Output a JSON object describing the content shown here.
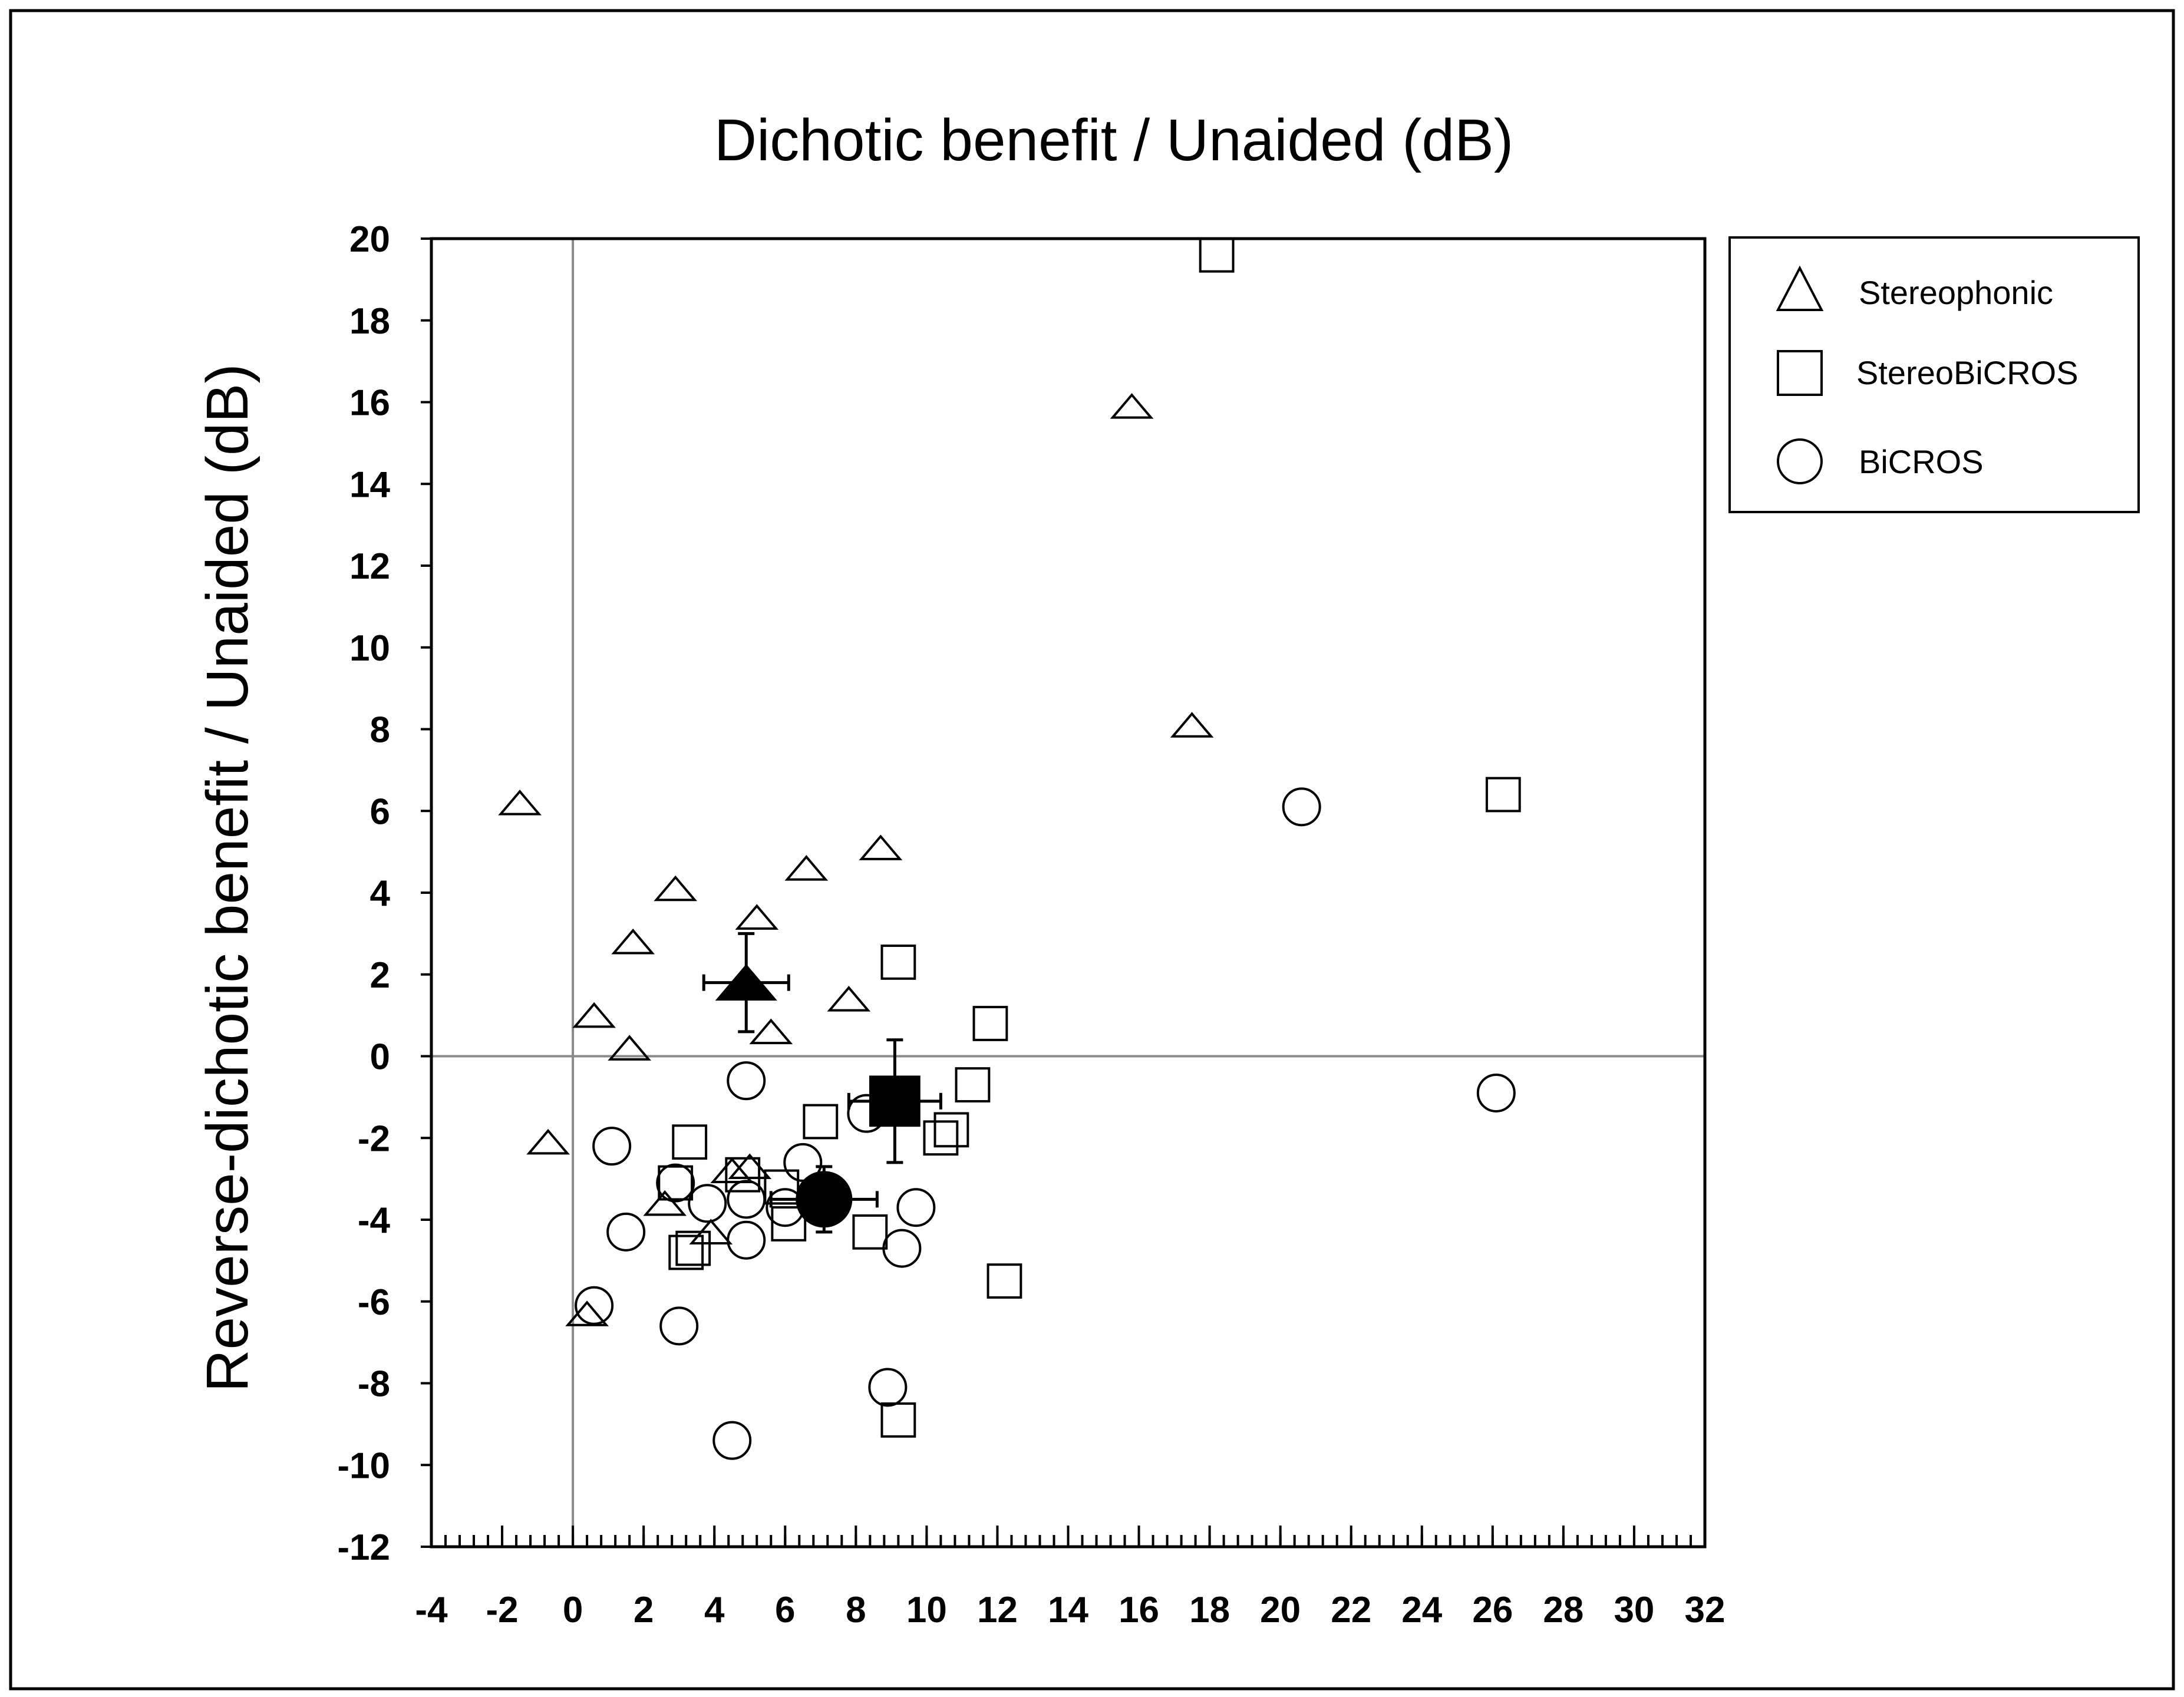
{
  "chart_data": {
    "type": "scatter",
    "title": "Dichotic benefit / Unaided (dB)",
    "xlabel": "",
    "ylabel": "Reverse-dichotic benefit / Unaided (dB)",
    "xlim": [
      -4,
      32
    ],
    "ylim": [
      -12,
      20
    ],
    "x_ticks": [
      -4,
      -2,
      0,
      2,
      4,
      6,
      8,
      10,
      12,
      14,
      16,
      18,
      20,
      22,
      24,
      26,
      28,
      30,
      32
    ],
    "x_tick_labels": [
      "-4",
      "-2",
      "0",
      "2",
      "4",
      "6",
      "8",
      "10",
      "12",
      "14",
      "16",
      "18",
      "20",
      "22",
      "24",
      "26",
      "28",
      "30",
      "32"
    ],
    "y_ticks": [
      -12,
      -10,
      -8,
      -6,
      -4,
      -2,
      0,
      2,
      4,
      6,
      8,
      10,
      12,
      14,
      16,
      18,
      20
    ],
    "y_tick_labels": [
      "-12",
      "-10",
      "-8",
      "-6",
      "-4",
      "-2",
      "0",
      "2",
      "4",
      "6",
      "8",
      "10",
      "12",
      "14",
      "16",
      "18",
      "20"
    ],
    "x_minor_step": 0.4,
    "reference_lines": {
      "x": 0,
      "y": 0
    },
    "grid": false,
    "legend_position": "top-right, outside plot",
    "series": [
      {
        "name": "Stereophonic",
        "marker": "triangle",
        "fill": "none",
        "points": [
          [
            -1.5,
            6.2
          ],
          [
            -0.7,
            -2.1
          ],
          [
            0.6,
            1.0
          ],
          [
            1.6,
            0.2
          ],
          [
            1.7,
            2.8
          ],
          [
            2.9,
            4.1
          ],
          [
            2.6,
            -3.6
          ],
          [
            3.9,
            -4.3
          ],
          [
            4.5,
            -2.8
          ],
          [
            5.0,
            -2.7
          ],
          [
            5.2,
            3.4
          ],
          [
            5.6,
            0.6
          ],
          [
            6.6,
            4.6
          ],
          [
            7.8,
            1.4
          ],
          [
            8.7,
            5.1
          ],
          [
            0.4,
            -6.3
          ],
          [
            15.8,
            15.9
          ],
          [
            17.5,
            8.1
          ]
        ]
      },
      {
        "name": "StereoBiCROS",
        "marker": "square",
        "fill": "none",
        "points": [
          [
            18.2,
            19.6
          ],
          [
            26.3,
            6.4
          ],
          [
            9.2,
            2.3
          ],
          [
            11.8,
            0.8
          ],
          [
            11.3,
            -0.7
          ],
          [
            10.7,
            -1.8
          ],
          [
            10.4,
            -2.0
          ],
          [
            7.0,
            -1.6
          ],
          [
            3.3,
            -2.1
          ],
          [
            2.9,
            -3.1
          ],
          [
            3.2,
            -4.8
          ],
          [
            3.4,
            -4.7
          ],
          [
            5.9,
            -3.2
          ],
          [
            6.1,
            -4.1
          ],
          [
            8.4,
            -4.3
          ],
          [
            12.2,
            -5.5
          ],
          [
            9.2,
            -8.9
          ],
          [
            4.8,
            -2.9
          ]
        ]
      },
      {
        "name": "BiCROS",
        "marker": "circle",
        "fill": "none",
        "points": [
          [
            20.6,
            6.1
          ],
          [
            26.1,
            -0.9
          ],
          [
            4.9,
            -0.6
          ],
          [
            8.3,
            -1.4
          ],
          [
            1.1,
            -2.2
          ],
          [
            2.9,
            -3.1
          ],
          [
            3.8,
            -3.6
          ],
          [
            4.9,
            -3.5
          ],
          [
            6.0,
            -3.7
          ],
          [
            6.5,
            -2.6
          ],
          [
            9.7,
            -3.7
          ],
          [
            1.5,
            -4.3
          ],
          [
            4.9,
            -4.5
          ],
          [
            9.3,
            -4.7
          ],
          [
            0.6,
            -6.1
          ],
          [
            3.0,
            -6.6
          ],
          [
            8.9,
            -8.1
          ],
          [
            4.5,
            -9.4
          ]
        ]
      }
    ],
    "means": [
      {
        "name": "Stereophonic mean",
        "marker": "triangle",
        "fill": "filled",
        "x": 4.9,
        "y": 1.8,
        "x_err": 1.2,
        "y_err": 1.2
      },
      {
        "name": "StereoBiCROS mean",
        "marker": "square",
        "fill": "filled",
        "x": 9.1,
        "y": -1.1,
        "x_err": 1.3,
        "y_err": 1.5
      },
      {
        "name": "BiCROS mean",
        "marker": "circle",
        "fill": "filled",
        "x": 7.1,
        "y": -3.5,
        "x_err": 1.5,
        "y_err": 0.8
      }
    ],
    "legend": [
      {
        "label": "Stereophonic",
        "marker": "triangle"
      },
      {
        "label": "StereoBiCROS",
        "marker": "square"
      },
      {
        "label": "BiCROS",
        "marker": "circle"
      }
    ],
    "colors": {
      "ink": "#000000",
      "reference_line": "#8a8a8a",
      "background": "#ffffff"
    }
  }
}
